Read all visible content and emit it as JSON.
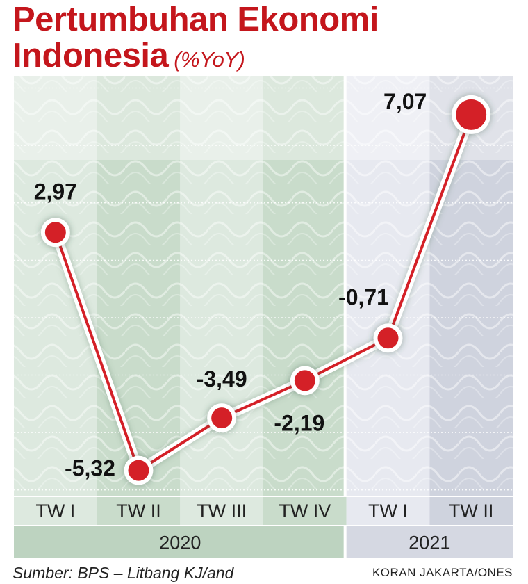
{
  "title_line1": "Pertumbuhan Ekonomi",
  "title_line2": "Indonesia",
  "unit": "(%YoY)",
  "source": "Sumber: BPS – Litbang KJ/and",
  "credit": "KORAN JAKARTA/ONES",
  "colors": {
    "accent": "#c4161c",
    "line": "#d42027",
    "bg_2020": "#dde9df",
    "bg_2020_alt": "#c9dccb",
    "bg_2021": "#e7e9f0",
    "bg_2021_alt": "#cfd3de",
    "year_2020": "#bdd3c0",
    "year_2021": "#d5d8e2"
  },
  "chart_data": {
    "type": "line",
    "categories": [
      "TW I",
      "TW II",
      "TW III",
      "TW IV",
      "TW I",
      "TW II"
    ],
    "values": [
      2.97,
      -5.32,
      -3.49,
      -2.19,
      -0.71,
      7.07
    ],
    "labels": [
      "2,97",
      "-5,32",
      "-3,49",
      "-2,19",
      "-0,71",
      "7,07"
    ],
    "years": [
      {
        "label": "2020",
        "span": [
          0,
          3
        ]
      },
      {
        "label": "2021",
        "span": [
          4,
          5
        ]
      }
    ],
    "ylim": [
      -6.2,
      8.4
    ],
    "grid": true
  }
}
